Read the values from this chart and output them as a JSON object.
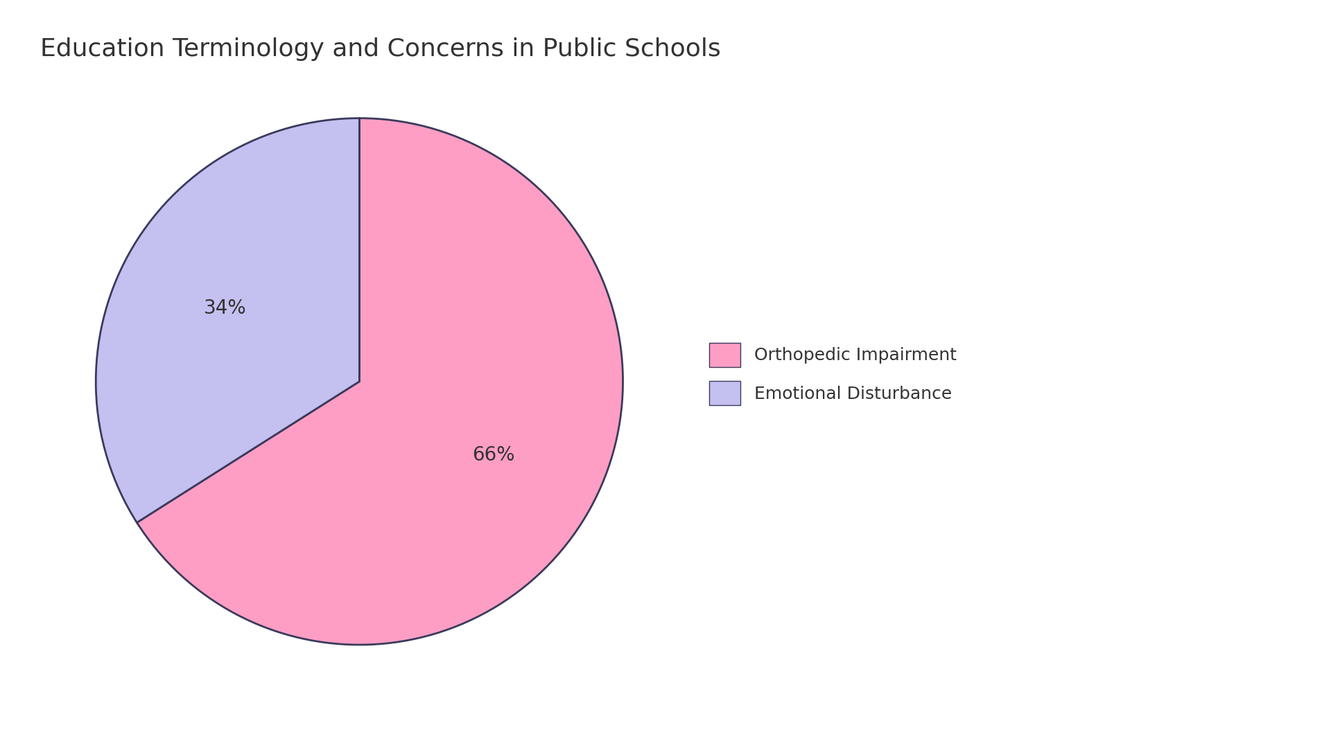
{
  "title": "Education Terminology and Concerns in Public Schools",
  "slices": [
    66,
    34
  ],
  "labels": [
    "Orthopedic Impairment",
    "Emotional Disturbance"
  ],
  "colors": [
    "#FF9EC4",
    "#C4C0F0"
  ],
  "edge_color": "#3a3a5c",
  "edge_width": 2.0,
  "pct_labels": [
    "66%",
    "34%"
  ],
  "text_color": "#333333",
  "background_color": "#ffffff",
  "title_fontsize": 26,
  "pct_fontsize": 20,
  "legend_fontsize": 18,
  "startangle": 90
}
